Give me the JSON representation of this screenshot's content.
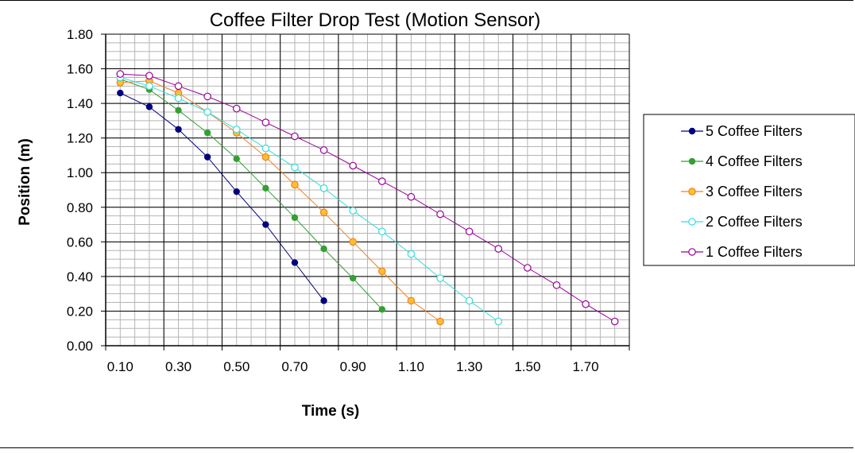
{
  "chart_data": {
    "type": "scatter",
    "title": "Coffee Filter Drop Test (Motion Sensor)",
    "xlabel": "Time  (s)",
    "ylabel": "Position (m)",
    "xlim": [
      0.05,
      1.85
    ],
    "ylim": [
      0,
      1.8
    ],
    "x_ticks": [
      "0.10",
      "0.30",
      "0.50",
      "0.70",
      "0.90",
      "1.10",
      "1.30",
      "1.50",
      "1.70"
    ],
    "y_ticks": [
      "0.00",
      "0.20",
      "0.40",
      "0.60",
      "0.80",
      "1.00",
      "1.20",
      "1.40",
      "1.60",
      "1.80"
    ],
    "grid": true,
    "legend_position": "right",
    "series": [
      {
        "name": "5 Coffee Filters",
        "color": "#000080",
        "marker": "filled-circle",
        "x": [
          0.1,
          0.2,
          0.3,
          0.4,
          0.5,
          0.6,
          0.7,
          0.8
        ],
        "y": [
          1.46,
          1.38,
          1.25,
          1.09,
          0.89,
          0.7,
          0.48,
          0.26
        ]
      },
      {
        "name": "4 Coffee Filters",
        "color": "#33a033",
        "marker": "filled-circle",
        "x": [
          0.1,
          0.2,
          0.3,
          0.4,
          0.5,
          0.6,
          0.7,
          0.8,
          0.9,
          1.0
        ],
        "y": [
          1.54,
          1.48,
          1.36,
          1.23,
          1.08,
          0.91,
          0.74,
          0.56,
          0.39,
          0.21
        ]
      },
      {
        "name": "3 Coffee Filters",
        "color": "#f08020",
        "marker": "orange-circle",
        "x": [
          0.1,
          0.2,
          0.3,
          0.4,
          0.5,
          0.6,
          0.7,
          0.8,
          0.9,
          1.0,
          1.1,
          1.2
        ],
        "y": [
          1.52,
          1.53,
          1.46,
          1.35,
          1.23,
          1.09,
          0.93,
          0.77,
          0.6,
          0.43,
          0.26,
          0.14
        ]
      },
      {
        "name": "2 Coffee Filters",
        "color": "#33dddd",
        "marker": "open-circle",
        "x": [
          0.1,
          0.2,
          0.3,
          0.4,
          0.5,
          0.6,
          0.7,
          0.8,
          0.9,
          1.0,
          1.1,
          1.2,
          1.3,
          1.4
        ],
        "y": [
          1.55,
          1.5,
          1.43,
          1.35,
          1.25,
          1.14,
          1.03,
          0.91,
          0.78,
          0.66,
          0.53,
          0.39,
          0.26,
          0.14
        ]
      },
      {
        "name": "1 Coffee Filters",
        "color": "#990099",
        "marker": "open-circle",
        "x": [
          0.1,
          0.2,
          0.3,
          0.4,
          0.5,
          0.6,
          0.7,
          0.8,
          0.9,
          1.0,
          1.1,
          1.2,
          1.3,
          1.4,
          1.5,
          1.6,
          1.7,
          1.8
        ],
        "y": [
          1.57,
          1.56,
          1.5,
          1.44,
          1.37,
          1.29,
          1.21,
          1.13,
          1.04,
          0.95,
          0.86,
          0.76,
          0.66,
          0.56,
          0.45,
          0.35,
          0.24,
          0.14
        ]
      }
    ]
  }
}
